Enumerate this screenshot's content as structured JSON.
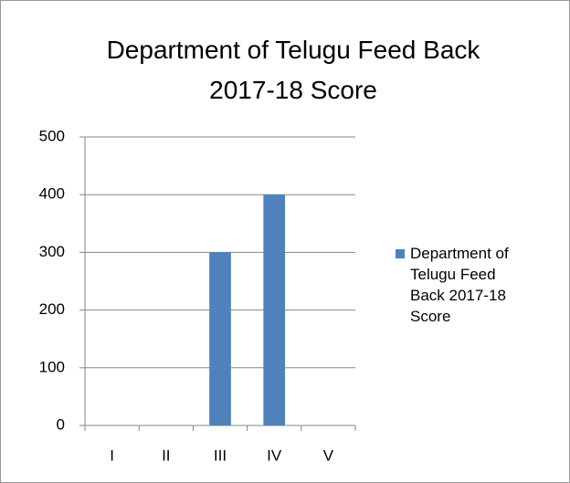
{
  "chart_data": {
    "type": "bar",
    "title": "Department of Telugu Feed Back   2017-18 Score",
    "categories": [
      "I",
      "II",
      "III",
      "IV",
      "V"
    ],
    "series": [
      {
        "name": "Department of Telugu Feed Back   2017-18 Score",
        "color": "#4f81bd",
        "values": [
          0,
          0,
          300,
          400,
          0
        ]
      }
    ],
    "ylim": [
      0,
      500
    ],
    "yticks": [
      0,
      100,
      200,
      300,
      400,
      500
    ],
    "grid": true,
    "legend": "right"
  }
}
